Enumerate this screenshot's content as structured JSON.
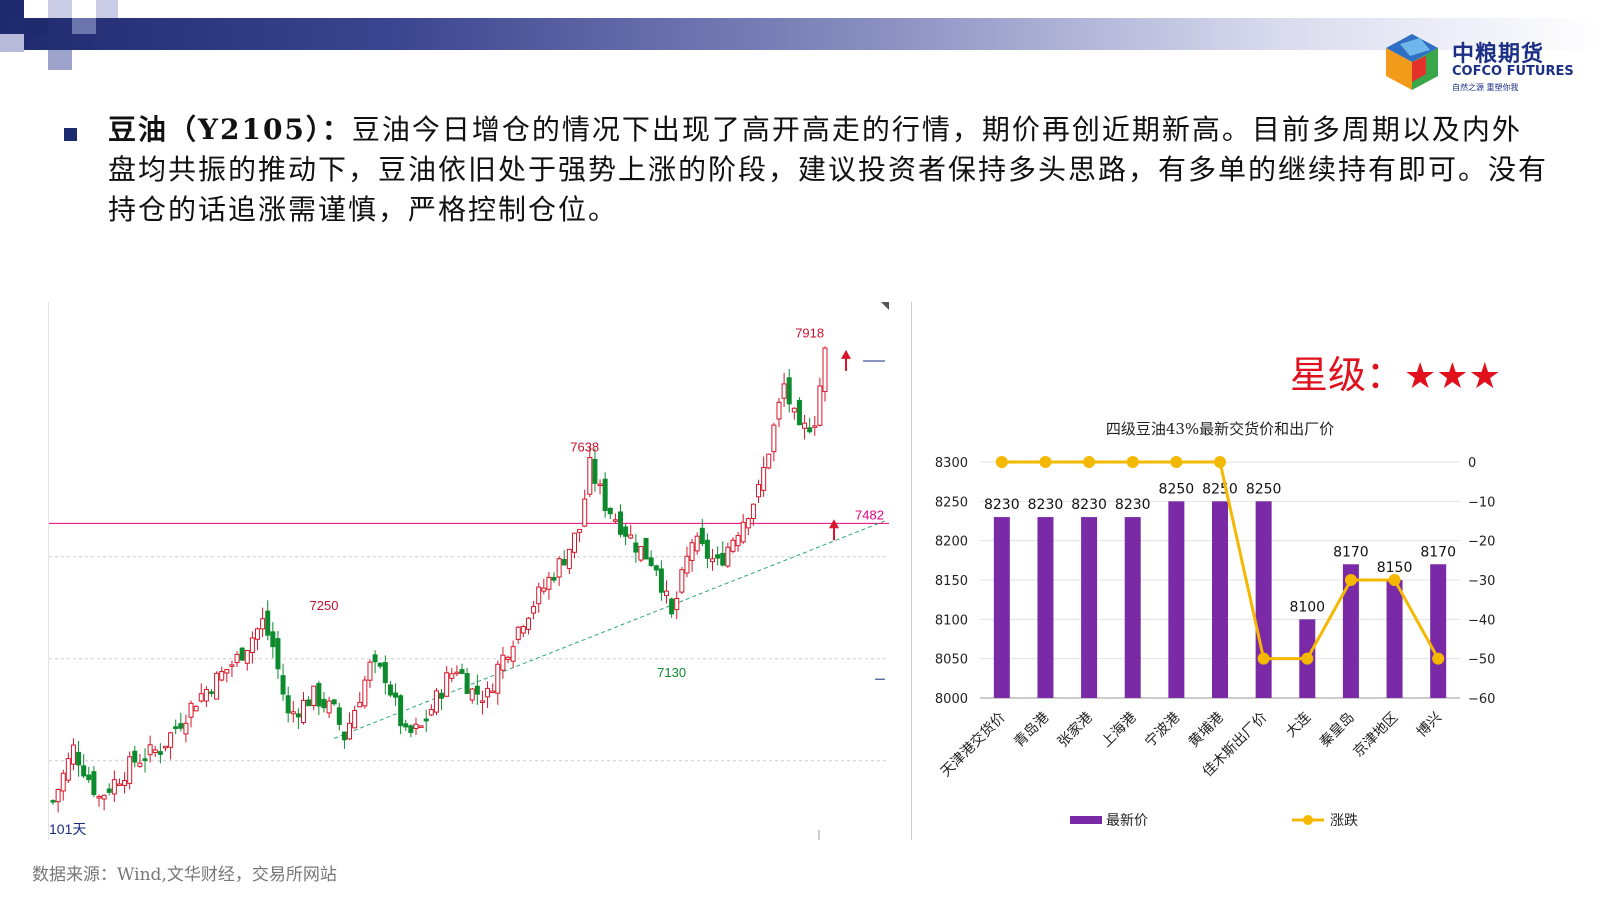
{
  "logo": {
    "cn": "中粮期货",
    "en": "COFCO FUTURES",
    "slogan": "自然之源 重塑你我"
  },
  "text": {
    "lead": "豆油（Y2105）：",
    "body": "豆油今日增仓的情况下出现了高开高走的行情，期价再创近期新高。目前多周期以及内外盘均共振的推动下，豆油依旧处于强势上涨的阶段，建议投资者保持多头思路，有多单的继续持有即可。没有持仓的话追涨需谨慎，严格控制仓位。"
  },
  "rating": {
    "label": "星级：",
    "stars": "★★★"
  },
  "source": "数据来源：Wind,文华财经，交易所网站",
  "colors": {
    "up": "#d6162a",
    "down": "#0d8a2e",
    "bar": "#7a2aa6",
    "line": "#f5b800",
    "support": "#e6007e",
    "trend": "#2aa874"
  },
  "chart_data": [
    {
      "type": "candlestick",
      "period_label": "101天",
      "annotations": {
        "high_recent": 7918,
        "high_mid": 7638,
        "high_early": 7250,
        "low_pullback": 7130,
        "support_line": 7482
      },
      "ylim": [
        6750,
        8000
      ]
    },
    {
      "type": "bar",
      "title": "四级豆油43%最新交货价和出厂价",
      "categories": [
        "天津港交货价",
        "青岛港",
        "张家港",
        "上海港",
        "宁波港",
        "黄埔港",
        "佳木斯出厂价",
        "大连",
        "秦皇岛",
        "京津地区",
        "博兴"
      ],
      "series": [
        {
          "name": "最新价",
          "type": "bar",
          "axis": "left",
          "values": [
            8230,
            8230,
            8230,
            8230,
            8250,
            8250,
            8250,
            8100,
            8170,
            8150,
            8170
          ]
        },
        {
          "name": "涨跌",
          "type": "line",
          "axis": "right",
          "values": [
            0,
            0,
            0,
            0,
            0,
            0,
            -50,
            -50,
            -30,
            -30,
            -50
          ]
        }
      ],
      "ylim_left": [
        8000,
        8300
      ],
      "ylim_right": [
        -60,
        0
      ],
      "yticks_left": [
        8000,
        8050,
        8100,
        8150,
        8200,
        8250,
        8300
      ],
      "yticks_right": [
        -60,
        -50,
        -40,
        -30,
        -20,
        -10,
        0
      ],
      "legend_position": "bottom"
    }
  ]
}
